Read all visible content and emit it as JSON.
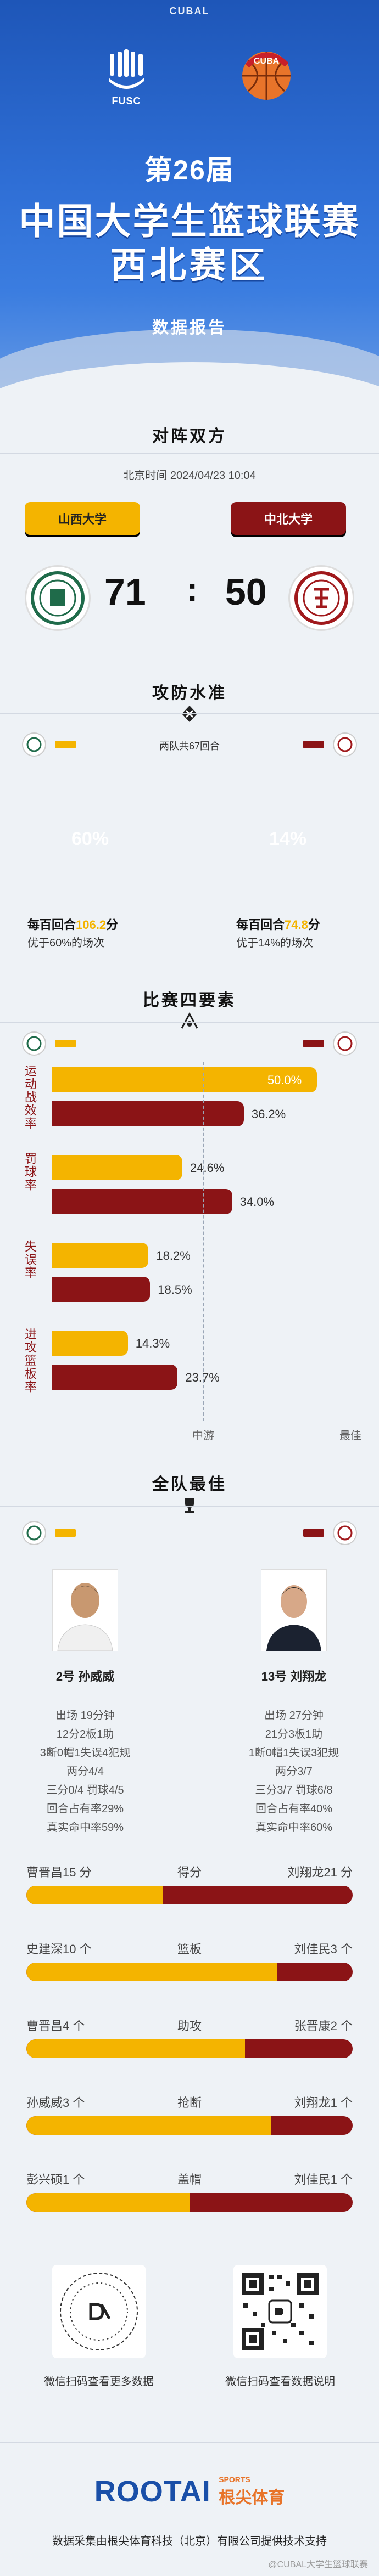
{
  "header": {
    "cubal": "CUBAL",
    "fusc_label": "FUSC",
    "edition": "第26届",
    "title_line1": "中国大学生篮球联赛",
    "title_line2": "西北赛区",
    "subtitle": "数据报告"
  },
  "matchup": {
    "section_title": "对阵双方",
    "time_label": "北京时间  2024/04/23 10:04",
    "team_a": "山西大学",
    "team_b": "中北大学",
    "score_a": "71",
    "score_b": "50",
    "colon": ":"
  },
  "offense_defense": {
    "section_title": "攻防水准",
    "rounds": "两队共67回合",
    "pct_a": "60%",
    "pct_b": "14%",
    "a_line1_prefix": "每百回合",
    "a_line1_value": "106.2",
    "a_line1_suffix": "分",
    "a_line2": "优于60%的场次",
    "b_line1_prefix": "每百回合",
    "b_line1_value": "74.8",
    "b_line1_suffix": "分",
    "b_line2": "优于14%的场次",
    "colors": {
      "team_a": "#f4b400",
      "team_b": "#8b1416",
      "highlight": "#f4b400"
    }
  },
  "four_factors": {
    "section_title": "比赛四要素",
    "factors": [
      {
        "label": "运动战效率",
        "a": 50.0,
        "b": 36.2,
        "a_text": "50.0%",
        "b_text": "36.2%"
      },
      {
        "label": "罚球率",
        "a": 24.6,
        "b": 34.0,
        "a_text": "24.6%",
        "b_text": "34.0%"
      },
      {
        "label": "失误率",
        "a": 18.2,
        "b": 18.5,
        "a_text": "18.2%",
        "b_text": "18.5%"
      },
      {
        "label": "进攻篮板率",
        "a": 14.3,
        "b": 23.7,
        "a_text": "14.3%",
        "b_text": "23.7%"
      }
    ],
    "axis_mid": "中游",
    "axis_best": "最佳"
  },
  "best": {
    "section_title": "全队最佳",
    "player_a": {
      "name": "2号 孙威威",
      "lines": [
        "出场 19分钟",
        "12分2板1助",
        "3断0帽1失误4犯规",
        "两分4/4",
        "三分0/4 罚球4/5",
        "回合占有率29%",
        "真实命中率59%"
      ]
    },
    "player_b": {
      "name": "13号 刘翔龙",
      "lines": [
        "出场 27分钟",
        "21分3板1助",
        "1断0帽1失误3犯规",
        "两分3/7",
        "三分3/7 罚球6/8",
        "回合占有率40%",
        "真实命中率60%"
      ]
    },
    "comparisons": [
      {
        "left": "曹晋昌15 分",
        "center": "得分",
        "right": "刘翔龙21 分",
        "fraction": 0.42
      },
      {
        "left": "史建深10 个",
        "center": "篮板",
        "right": "刘佳民3 个",
        "fraction": 0.77
      },
      {
        "left": "曹晋昌4 个",
        "center": "助攻",
        "right": "张晋康2 个",
        "fraction": 0.67
      },
      {
        "left": "孙威威3 个",
        "center": "抢断",
        "right": "刘翔龙1 个",
        "fraction": 0.75
      },
      {
        "left": "彭兴硕1 个",
        "center": "盖帽",
        "right": "刘佳民1 个",
        "fraction": 0.5
      }
    ]
  },
  "footer": {
    "qr_left_caption": "微信扫码查看更多数据",
    "qr_right_caption": "微信扫码查看数据说明",
    "brand_main": "ROOTAI",
    "brand_sports": "SPORTS",
    "brand_cn": "根尖体育",
    "note": "数据采集由根尖体育科技（北京）有限公司提供技术支持",
    "watermark": "@CUBAL大学生篮球联赛"
  }
}
